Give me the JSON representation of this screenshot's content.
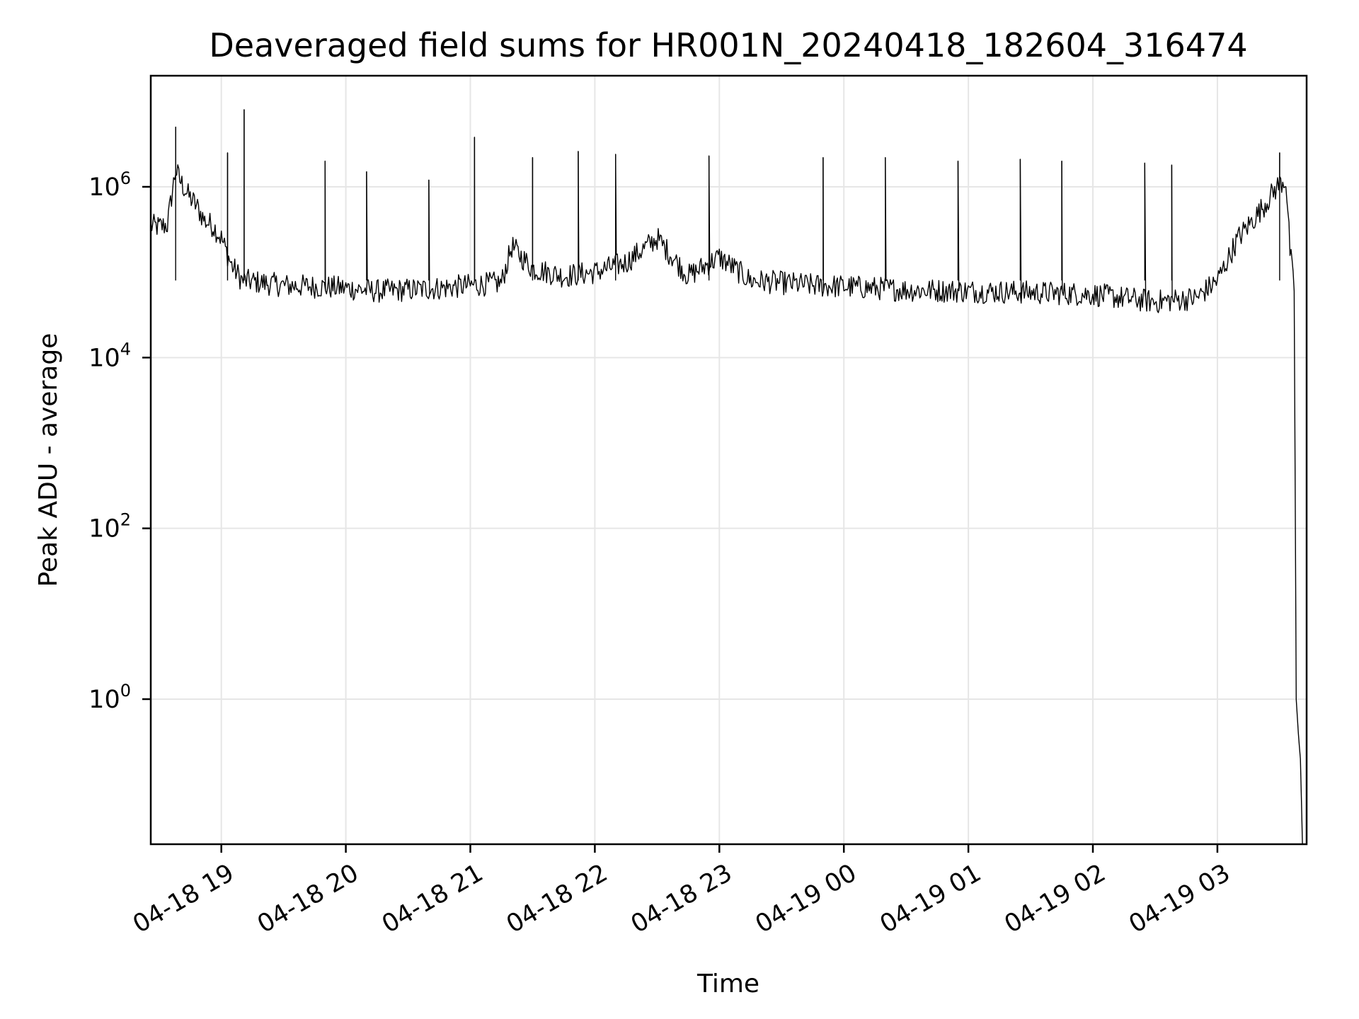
{
  "chart_data": {
    "type": "line",
    "title": "Deaveraged field sums for HR001N_20240418_182604_316474",
    "xlabel": "Time",
    "ylabel": "Peak ADU - average",
    "y_scale": "log",
    "x_range": [
      "2024-04-18 18:26",
      "2024-04-19 03:43"
    ],
    "ylim": [
      0.02,
      20000000
    ],
    "grid": true,
    "legend": "none",
    "line_color": "#000000",
    "grid_color": "#e6e6e6",
    "x_ticks": [
      {
        "t": "2024-04-18 19:00",
        "label": "04-18 19"
      },
      {
        "t": "2024-04-18 20:00",
        "label": "04-18 20"
      },
      {
        "t": "2024-04-18 21:00",
        "label": "04-18 21"
      },
      {
        "t": "2024-04-18 22:00",
        "label": "04-18 22"
      },
      {
        "t": "2024-04-18 23:00",
        "label": "04-18 23"
      },
      {
        "t": "2024-04-19 00:00",
        "label": "04-19 00"
      },
      {
        "t": "2024-04-19 01:00",
        "label": "04-19 01"
      },
      {
        "t": "2024-04-19 02:00",
        "label": "04-19 02"
      },
      {
        "t": "2024-04-19 03:00",
        "label": "04-19 03"
      }
    ],
    "y_ticks": [
      {
        "value": 1,
        "base": "10",
        "exp": "0"
      },
      {
        "value": 100,
        "base": "10",
        "exp": "2"
      },
      {
        "value": 10000,
        "base": "10",
        "exp": "4"
      },
      {
        "value": 1000000,
        "base": "10",
        "exp": "6"
      }
    ],
    "series": [
      {
        "x": [
          "2024-04-18 18:26",
          "2024-04-18 18:30",
          "2024-04-18 18:34",
          "2024-04-18 18:38",
          "2024-04-18 18:40",
          "2024-04-18 18:44",
          "2024-04-18 18:48",
          "2024-04-18 18:52",
          "2024-04-18 18:56",
          "2024-04-18 19:00",
          "2024-04-18 19:05",
          "2024-04-18 19:10",
          "2024-04-18 19:20",
          "2024-04-18 19:30",
          "2024-04-18 19:45",
          "2024-04-18 20:00",
          "2024-04-18 20:15",
          "2024-04-18 20:30",
          "2024-04-18 20:45",
          "2024-04-18 21:00",
          "2024-04-18 21:15",
          "2024-04-18 21:20",
          "2024-04-18 21:30",
          "2024-04-18 21:45",
          "2024-04-18 22:00",
          "2024-04-18 22:15",
          "2024-04-18 22:30",
          "2024-04-18 22:45",
          "2024-04-18 23:00",
          "2024-04-18 23:15",
          "2024-04-18 23:30",
          "2024-04-18 23:45",
          "2024-04-19 00:00",
          "2024-04-19 00:30",
          "2024-04-19 01:00",
          "2024-04-19 01:30",
          "2024-04-19 02:00",
          "2024-04-19 02:30",
          "2024-04-19 02:50",
          "2024-04-19 03:00",
          "2024-04-19 03:10",
          "2024-04-19 03:20",
          "2024-04-19 03:30",
          "2024-04-19 03:33",
          "2024-04-19 03:35",
          "2024-04-19 03:37",
          "2024-04-19 03:38",
          "2024-04-19 03:39",
          "2024-04-19 03:40",
          "2024-04-19 03:41"
        ],
        "values": [
          350000,
          340000,
          360000,
          1600000,
          1200000,
          800000,
          600000,
          400000,
          350000,
          250000,
          120000,
          80000,
          75000,
          70000,
          68000,
          65000,
          60000,
          62000,
          65000,
          70000,
          75000,
          200000,
          110000,
          90000,
          100000,
          130000,
          250000,
          90000,
          150000,
          80000,
          75000,
          70000,
          68000,
          62000,
          60000,
          58000,
          55000,
          45000,
          50000,
          80000,
          250000,
          500000,
          1100000,
          1200000,
          180000,
          60000,
          1,
          0.4,
          0.2,
          0.02
        ]
      }
    ],
    "spikes": [
      {
        "x": "2024-04-18 18:38",
        "y": 5000000
      },
      {
        "x": "2024-04-18 19:03",
        "y": 2500000
      },
      {
        "x": "2024-04-18 19:11",
        "y": 8000000
      },
      {
        "x": "2024-04-18 19:50",
        "y": 2000000
      },
      {
        "x": "2024-04-18 20:10",
        "y": 1500000
      },
      {
        "x": "2024-04-18 20:40",
        "y": 1200000
      },
      {
        "x": "2024-04-18 21:02",
        "y": 3800000
      },
      {
        "x": "2024-04-18 21:30",
        "y": 2200000
      },
      {
        "x": "2024-04-18 21:52",
        "y": 2600000
      },
      {
        "x": "2024-04-18 22:10",
        "y": 2400000
      },
      {
        "x": "2024-04-18 22:55",
        "y": 2300000
      },
      {
        "x": "2024-04-18 23:50",
        "y": 2200000
      },
      {
        "x": "2024-04-19 00:20",
        "y": 2200000
      },
      {
        "x": "2024-04-19 00:55",
        "y": 2000000
      },
      {
        "x": "2024-04-19 01:25",
        "y": 2100000
      },
      {
        "x": "2024-04-19 01:45",
        "y": 2000000
      },
      {
        "x": "2024-04-19 02:25",
        "y": 1900000
      },
      {
        "x": "2024-04-19 02:38",
        "y": 1800000
      },
      {
        "x": "2024-04-19 03:30",
        "y": 2500000
      }
    ]
  }
}
